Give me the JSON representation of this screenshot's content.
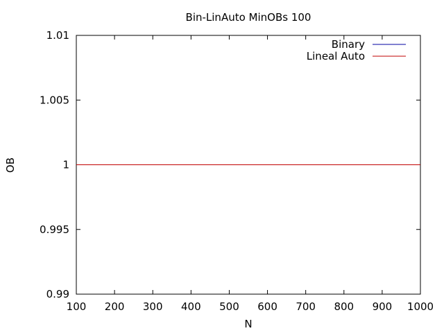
{
  "chart_data": {
    "type": "line",
    "title": "Bin-LinAuto MinOBs 100",
    "xlabel": "N",
    "ylabel": "OB",
    "xlim": [
      100,
      1000
    ],
    "ylim": [
      0.99,
      1.01
    ],
    "x_ticks": [
      100,
      200,
      300,
      400,
      500,
      600,
      700,
      800,
      900,
      1000
    ],
    "y_ticks": [
      0.99,
      0.995,
      1,
      1.005,
      1.01
    ],
    "x_tick_labels": [
      "100",
      "200",
      "300",
      "400",
      "500",
      "600",
      "700",
      "800",
      "900",
      "1000"
    ],
    "y_tick_labels": [
      "0.99",
      "0.995",
      "1",
      "1.005",
      "1.01"
    ],
    "grid": false,
    "legend_position": "top-right",
    "series": [
      {
        "name": "Binary",
        "color": "#0000a0",
        "x": [
          100,
          1000
        ],
        "y": [
          1,
          1
        ]
      },
      {
        "name": "Lineal Auto",
        "color": "#c00000",
        "x": [
          100,
          1000
        ],
        "y": [
          1,
          1
        ]
      }
    ]
  }
}
